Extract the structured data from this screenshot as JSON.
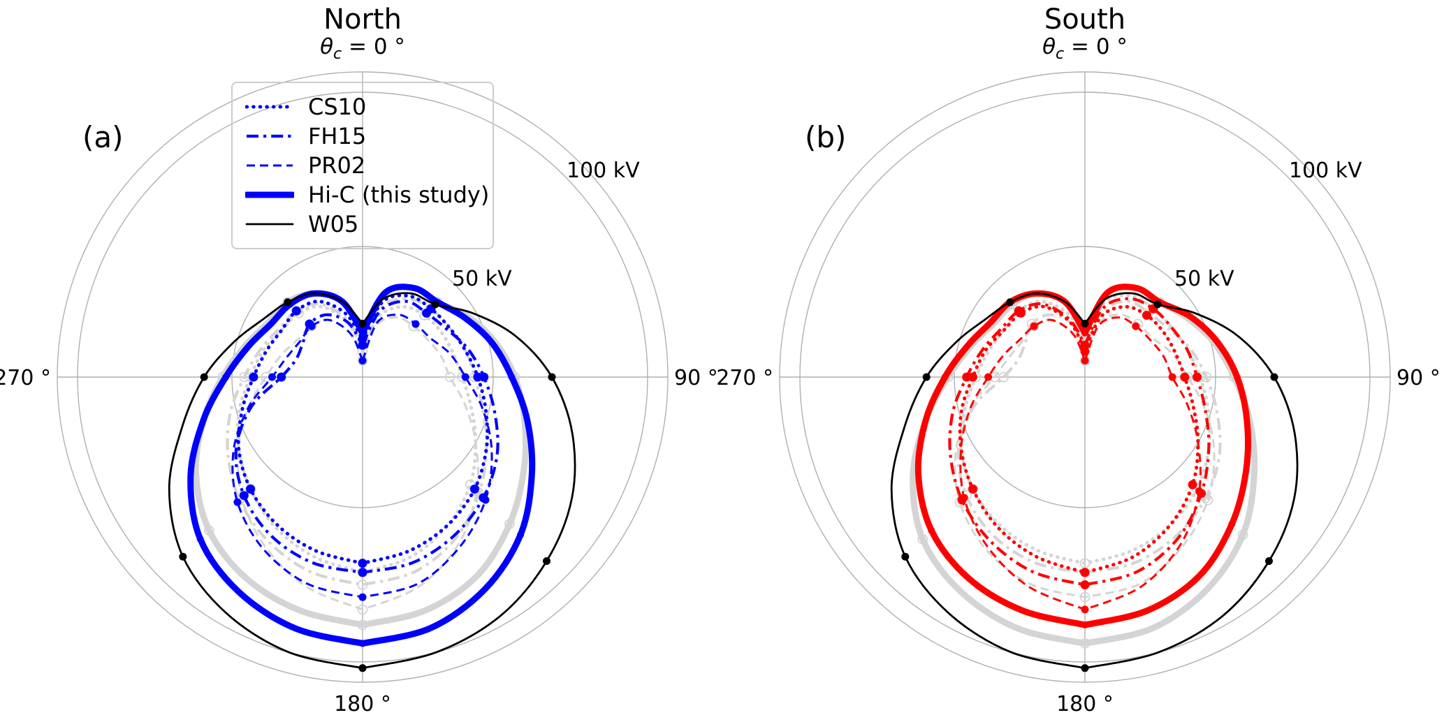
{
  "colors": {
    "blue": "#0000ff",
    "red": "#ff0000",
    "black": "#000000",
    "reference_gray": "#d4d4d4",
    "grid_gray": "#b0b0b0",
    "legend_border": "#cccccc"
  },
  "legend": {
    "items": [
      {
        "label": "CS10",
        "style": "dotted",
        "color": "#0000ff"
      },
      {
        "label": "FH15",
        "style": "dashdot",
        "color": "#0000ff"
      },
      {
        "label": "PR02",
        "style": "dashed",
        "color": "#0000ff"
      },
      {
        "label": "Hi-C (this study)",
        "style": "solid_thick",
        "color": "#0000ff"
      },
      {
        "label": "W05",
        "style": "solid_thin",
        "color": "#000000"
      }
    ]
  },
  "chart_data": {
    "type": "polar-line",
    "description": "Polar convection potential patterns vs colatitude angle; radius in kV; 0 deg at top, 90 deg right; gray curves show the opposite hemisphere for reference",
    "theta": {
      "symbol": "θ",
      "sub": "c",
      "rest": " = 0 °"
    },
    "panels": [
      {
        "letter": "(a)",
        "title": "North",
        "accent": "#0000ff",
        "series_set": "north",
        "reference_set": "south"
      },
      {
        "letter": "(b)",
        "title": "South",
        "accent": "#ff0000",
        "series_set": "south",
        "reference_set": "north"
      }
    ],
    "radial_axis": {
      "unit": "kV",
      "ticks": [
        {
          "value": 50,
          "label": "50 kV"
        },
        {
          "value": 100,
          "label": "100 kV"
        }
      ],
      "max_kv": 107,
      "grid": true
    },
    "angle_labels": [
      {
        "angle_deg": 90,
        "label": "90 °"
      },
      {
        "angle_deg": 180,
        "label": "180 °"
      },
      {
        "angle_deg": 270,
        "label": "270 °"
      }
    ],
    "angle_step_deg": 15,
    "marker_every_deg": 45,
    "series": [
      {
        "name": "CS10",
        "style": "dotted",
        "values": {
          "north": [
            20,
            33,
            38,
            39,
            40,
            42,
            45,
            49,
            54,
            59,
            63,
            66,
            68,
            66,
            63,
            59,
            54,
            48,
            43,
            40,
            38,
            38,
            36,
            29
          ],
          "south": [
            16,
            28,
            34,
            36,
            37,
            38,
            40,
            44,
            50,
            57,
            63,
            68,
            71,
            68,
            64,
            59,
            54,
            49,
            44,
            41,
            38,
            37,
            34,
            26
          ]
        }
      },
      {
        "name": "FH15",
        "style": "dashdot",
        "values": {
          "north": [
            18,
            30,
            36,
            37,
            39,
            43,
            47,
            52,
            58,
            63,
            67,
            70,
            71,
            70,
            67,
            62,
            55,
            45,
            34,
            30,
            30,
            32,
            31,
            26
          ],
          "south": [
            18,
            31,
            37,
            39,
            40,
            42,
            44,
            48,
            54,
            61,
            68,
            73,
            75,
            73,
            69,
            64,
            58,
            52,
            46,
            42,
            39,
            38,
            35,
            27
          ]
        }
      },
      {
        "name": "PR02",
        "style": "dashed",
        "values": {
          "north": [
            13,
            26,
            31,
            32,
            33,
            37,
            41,
            48,
            56,
            64,
            71,
            77,
            79,
            77,
            72,
            65,
            56,
            46,
            37,
            33,
            31,
            31,
            29,
            22
          ],
          "south": [
            13,
            25,
            30,
            31,
            32,
            34,
            36,
            42,
            50,
            60,
            70,
            78,
            83,
            78,
            71,
            63,
            54,
            46,
            39,
            35,
            32,
            31,
            29,
            22
          ]
        }
      },
      {
        "name": "Hi-C (this study)",
        "style": "solid_thick",
        "values": {
          "north": [
            22,
            36,
            41,
            42,
            46,
            51,
            56,
            63,
            71,
            80,
            87,
            92,
            94,
            92,
            88,
            82,
            72,
            61,
            52,
            46,
            42,
            41,
            39,
            33
          ],
          "south": [
            22,
            36,
            41,
            42,
            47,
            52,
            57,
            62,
            68,
            75,
            82,
            86,
            88,
            86,
            83,
            78,
            70,
            61,
            53,
            47,
            43,
            42,
            39,
            33
          ]
        }
      },
      {
        "name": "W05",
        "style": "solid_thin",
        "fixed_color": "#000000",
        "values": {
          "north": [
            25,
            34,
            39,
            41,
            49,
            59,
            69,
            78,
            86,
            92,
            97,
            100,
            102,
            100,
            96,
            90,
            80,
            68,
            59,
            51,
            45,
            42,
            39,
            33
          ],
          "south": [
            25,
            34,
            39,
            41,
            49,
            59,
            69,
            78,
            86,
            92,
            97,
            100,
            102,
            100,
            96,
            90,
            80,
            68,
            59,
            51,
            45,
            42,
            39,
            33
          ]
        }
      }
    ]
  }
}
